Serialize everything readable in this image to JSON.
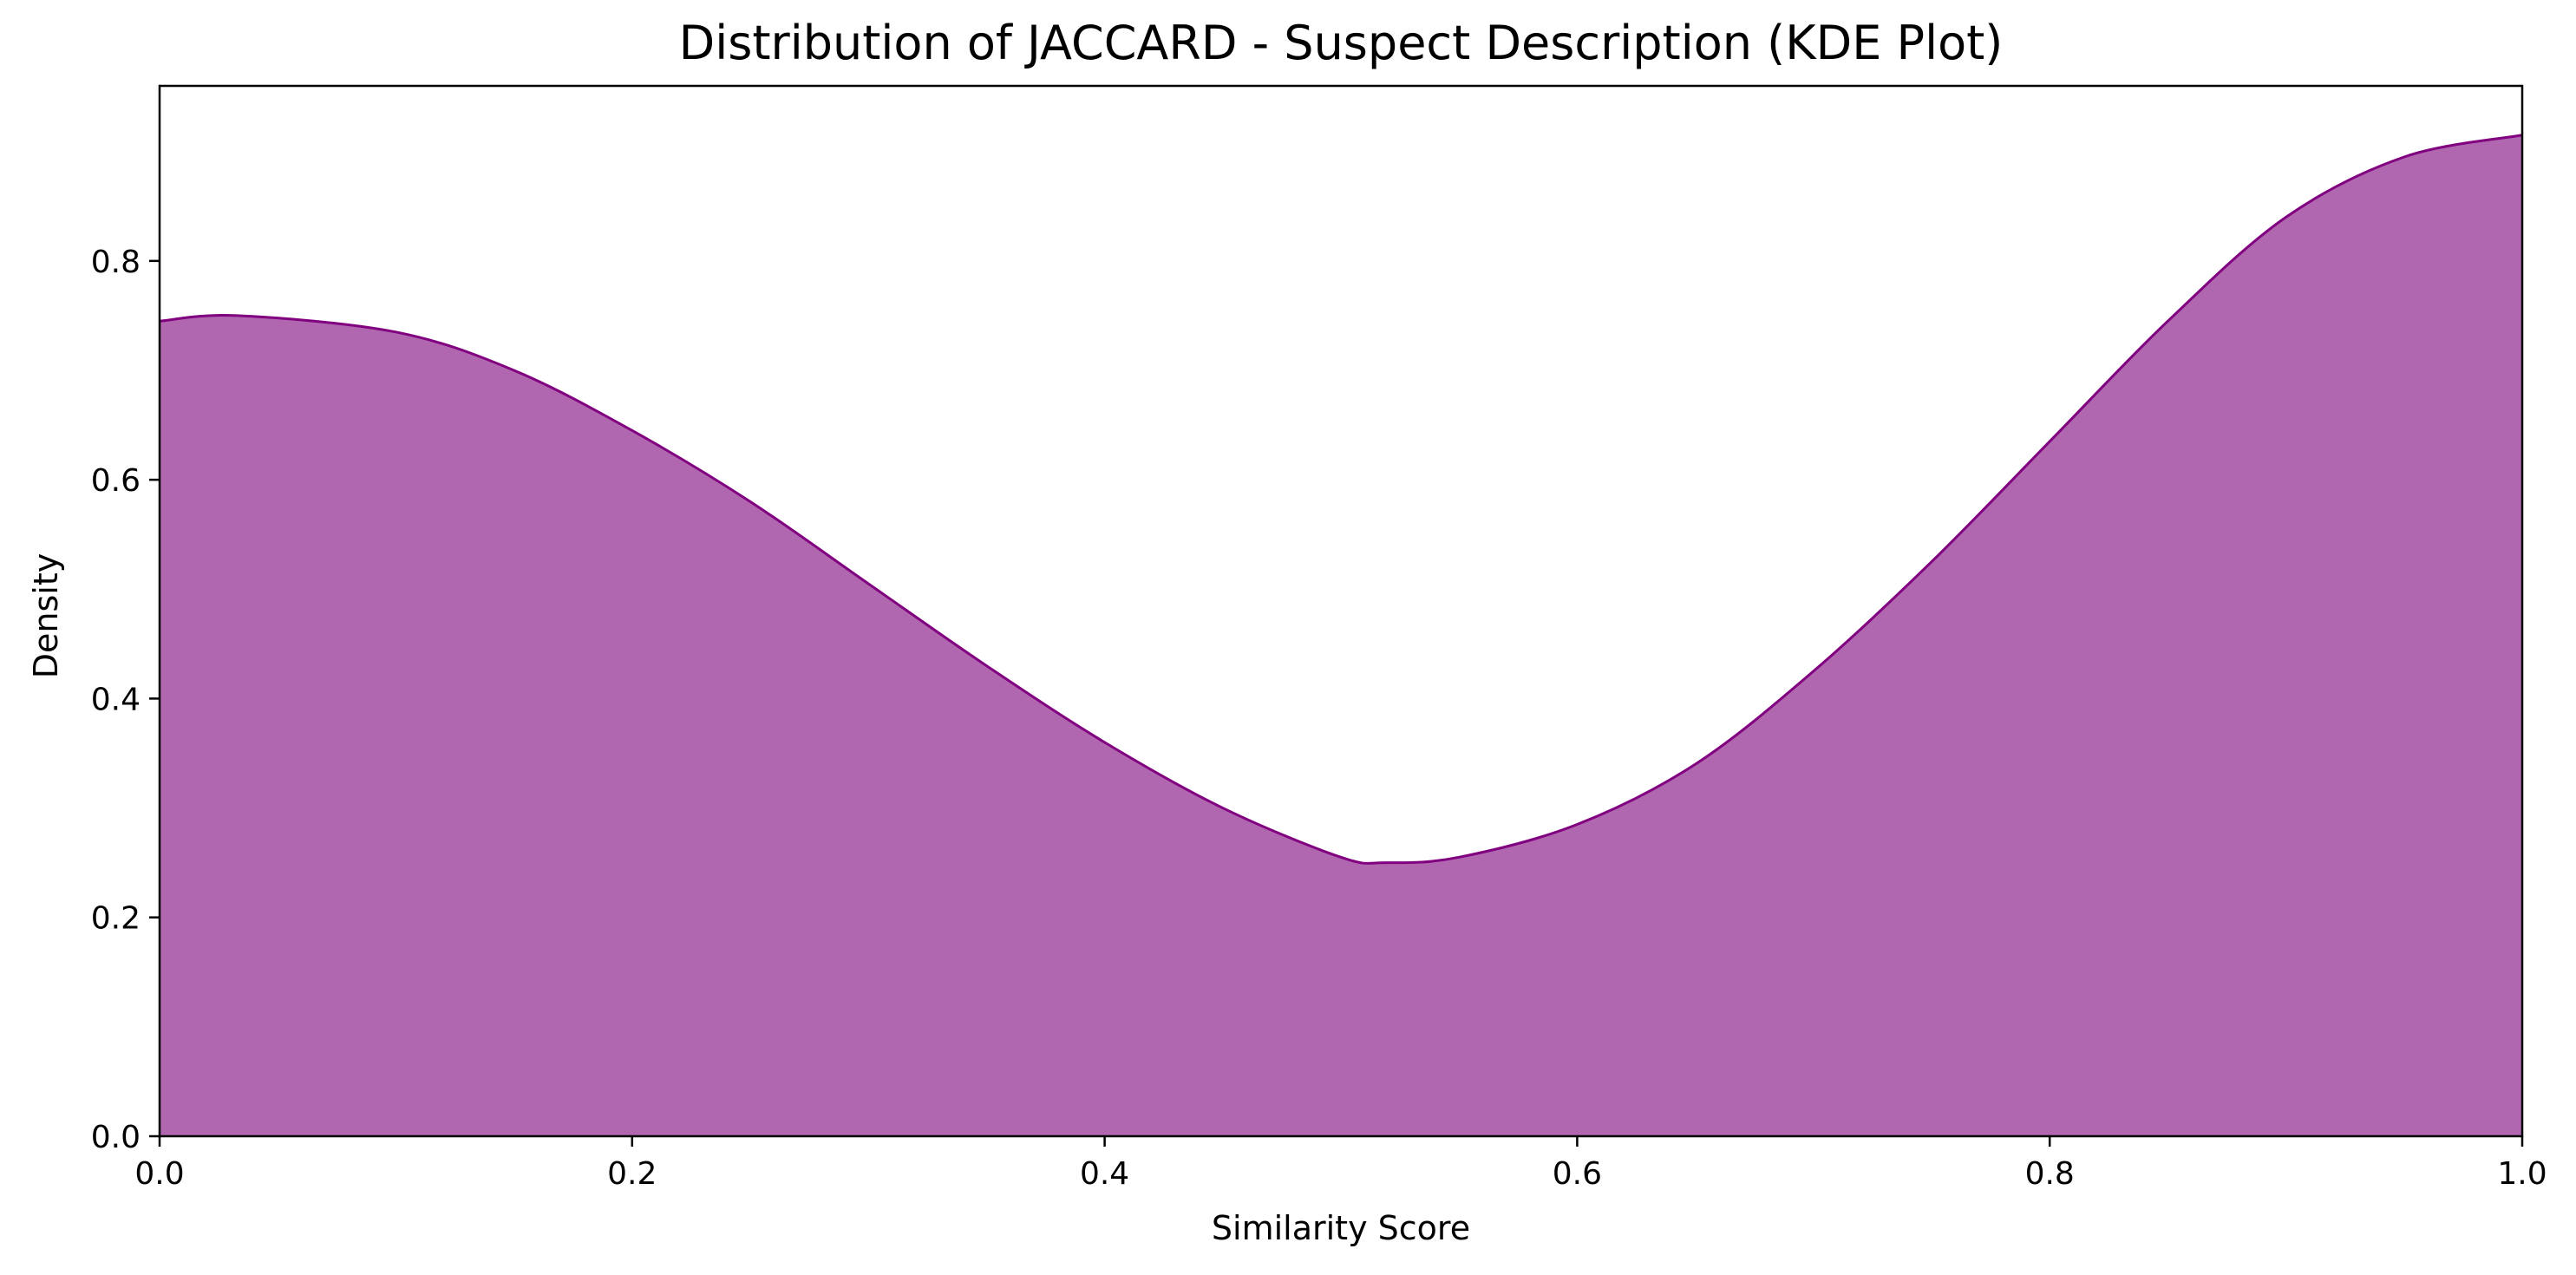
{
  "chart_data": {
    "type": "area",
    "title": "Distribution of JACCARD - Suspect Description (KDE Plot)",
    "xlabel": "Similarity Score",
    "ylabel": "Density",
    "xlim": [
      0.0,
      1.0
    ],
    "ylim": [
      0.0,
      0.96
    ],
    "x_ticks": [
      "0.0",
      "0.2",
      "0.4",
      "0.6",
      "0.8",
      "1.0"
    ],
    "y_ticks": [
      "0.0",
      "0.2",
      "0.4",
      "0.6",
      "0.8"
    ],
    "grid": false,
    "legend": "none",
    "fill_color": "#b166b0",
    "line_color": "#800080",
    "series": [
      {
        "x": [
          0.0,
          0.033,
          0.1,
          0.15,
          0.2,
          0.25,
          0.3,
          0.35,
          0.4,
          0.45,
          0.5,
          0.519,
          0.55,
          0.6,
          0.65,
          0.7,
          0.75,
          0.8,
          0.85,
          0.9,
          0.95,
          1.0
        ],
        "y": [
          0.745,
          0.75,
          0.735,
          0.7,
          0.645,
          0.58,
          0.505,
          0.43,
          0.36,
          0.3,
          0.255,
          0.25,
          0.255,
          0.285,
          0.34,
          0.425,
          0.525,
          0.635,
          0.745,
          0.84,
          0.895,
          0.915
        ]
      }
    ]
  }
}
